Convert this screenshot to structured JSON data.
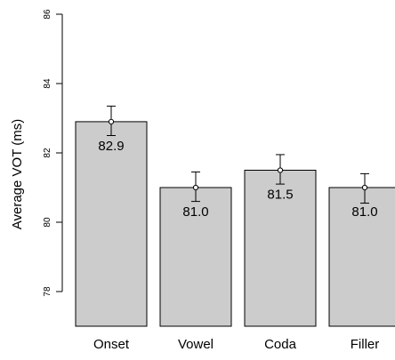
{
  "chart_data": {
    "type": "bar",
    "categories": [
      "Onset",
      "Vowel",
      "Coda",
      "Filler"
    ],
    "values": [
      82.9,
      81.0,
      81.5,
      81.0
    ],
    "value_labels": [
      "82.9",
      "81.0",
      "81.5",
      "81.0"
    ],
    "error_bars": {
      "lower": [
        82.5,
        80.6,
        81.1,
        80.55
      ],
      "upper": [
        83.35,
        81.45,
        81.95,
        81.4
      ]
    },
    "ylabel": "Average VOT (ms)",
    "xlabel": "",
    "yticks": [
      78,
      80,
      82,
      84,
      86
    ],
    "ylim": [
      77,
      86
    ],
    "grid": false,
    "legend": "none",
    "bar_color": "#cccccc",
    "edge_color": "#000000"
  }
}
